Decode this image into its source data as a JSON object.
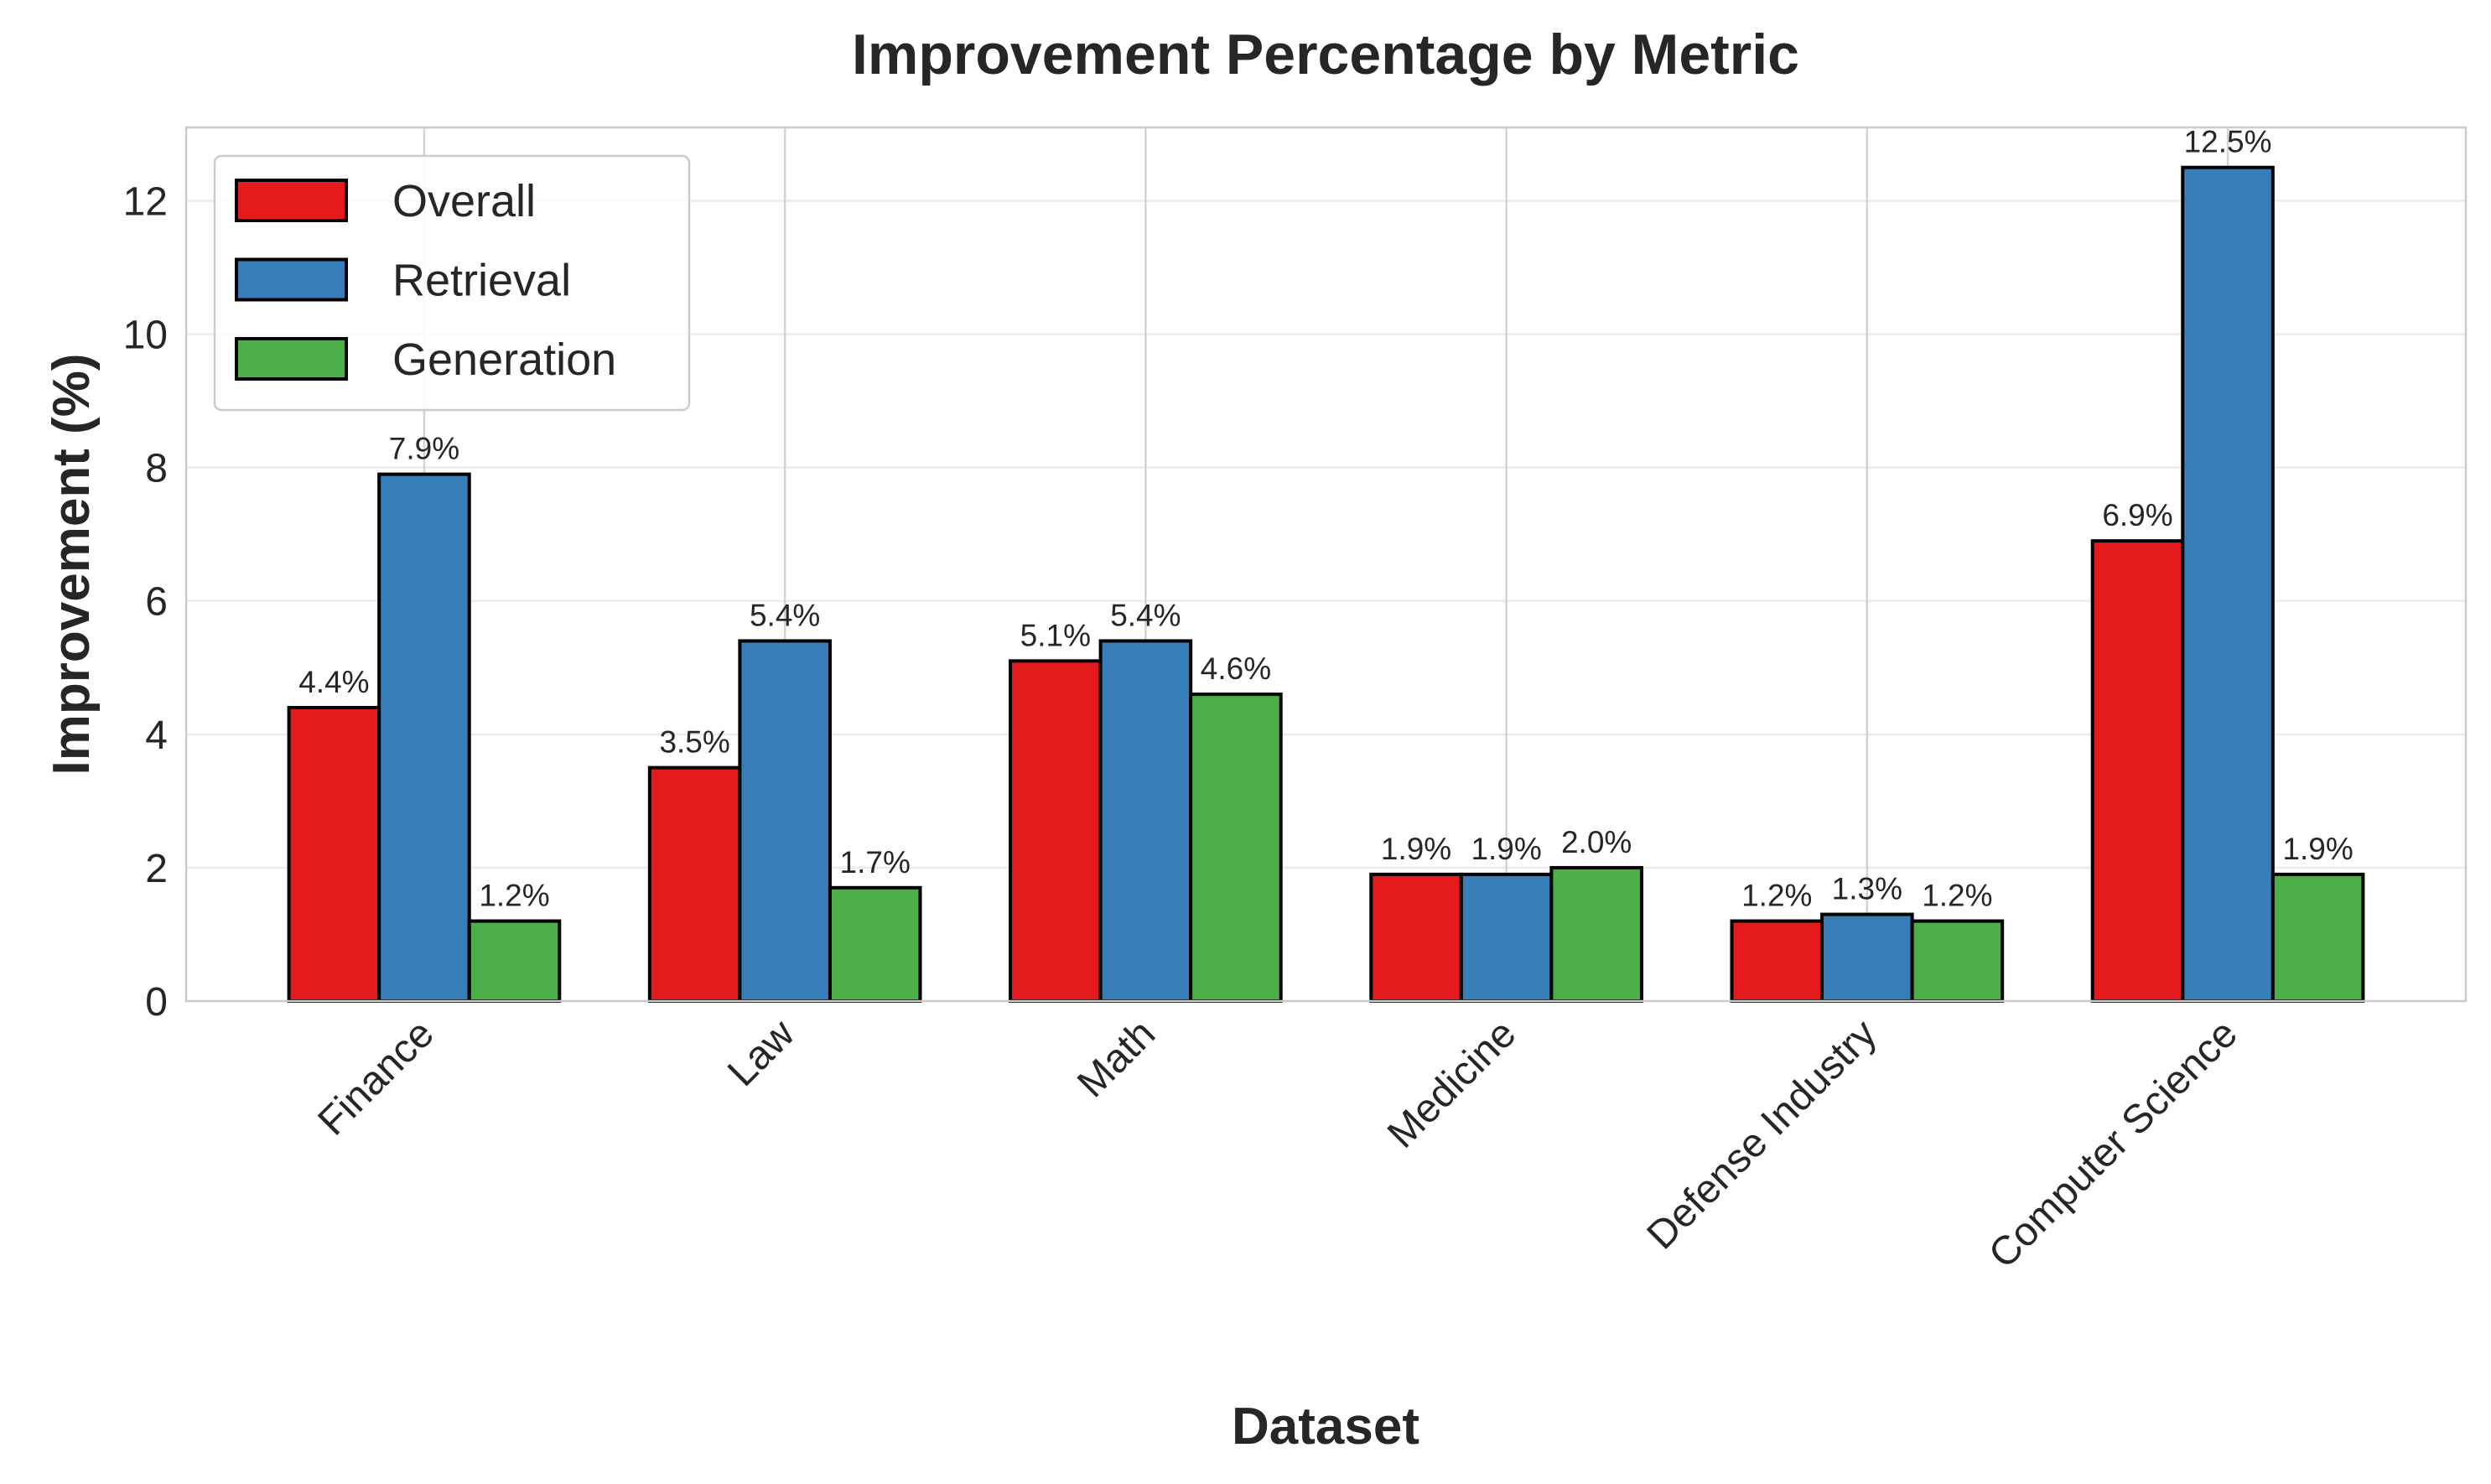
{
  "chart_data": {
    "type": "bar",
    "title": "Improvement Percentage by Metric",
    "xlabel": "Dataset",
    "ylabel": "Improvement (%)",
    "categories": [
      "Finance",
      "Law",
      "Math",
      "Medicine",
      "Defense Industry",
      "Computer Science"
    ],
    "series": [
      {
        "name": "Overall",
        "color": "#e41a1c",
        "values": [
          4.4,
          3.5,
          5.1,
          1.9,
          1.2,
          6.9
        ],
        "labels": [
          "4.4%",
          "3.5%",
          "5.1%",
          "1.9%",
          "1.2%",
          "6.9%"
        ]
      },
      {
        "name": "Retrieval",
        "color": "#377eb8",
        "values": [
          7.9,
          5.4,
          5.4,
          1.9,
          1.3,
          12.5
        ],
        "labels": [
          "7.9%",
          "5.4%",
          "5.4%",
          "1.9%",
          "1.3%",
          "12.5%"
        ]
      },
      {
        "name": "Generation",
        "color": "#4daf4a",
        "values": [
          1.2,
          1.7,
          4.6,
          2.0,
          1.2,
          1.9
        ],
        "labels": [
          "1.2%",
          "1.7%",
          "4.6%",
          "2.0%",
          "1.2%",
          "1.9%"
        ]
      }
    ],
    "ylim": [
      0,
      13.1
    ],
    "yticks": [
      "0",
      "2",
      "4",
      "6",
      "8",
      "10",
      "12"
    ],
    "grid": true,
    "legend_position": "top-left"
  }
}
